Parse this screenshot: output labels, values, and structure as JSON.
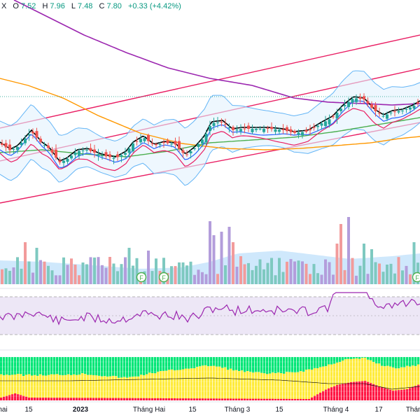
{
  "header": {
    "symbol_fragment": "X",
    "open_label": "O",
    "open": "7.52",
    "high_label": "H",
    "high": "7.96",
    "low_label": "L",
    "low": "7.48",
    "close_label": "C",
    "close": "7.80",
    "change": "+0.33 (+4.42%)"
  },
  "xaxis": {
    "labels": [
      "hai",
      "15",
      "2023",
      "Tháng Hai",
      "15",
      "Tháng 3",
      "15",
      "Tháng 4",
      "17",
      "Tháng"
    ]
  },
  "markers": {
    "dividend_letter": "F"
  },
  "colors": {
    "up": "#26a69a",
    "down": "#ef5350",
    "upVol": "#7ec9c0",
    "downVol": "#f29b9b",
    "ma_purple": "#9c27b0",
    "ma_orange": "#ff9800",
    "ma_green": "#4caf50",
    "ma_red": "#e91e63",
    "ma_blue": "#2962ff",
    "ma_black": "#000000",
    "bb_band": "#64b5f6",
    "channel": "#e91e63",
    "rsi": "#9c27b0",
    "rsi_bg": "#ede7f6",
    "heat_green": "#00e676",
    "heat_yellow": "#ffeb3b",
    "heat_red": "#ff1744"
  }
}
